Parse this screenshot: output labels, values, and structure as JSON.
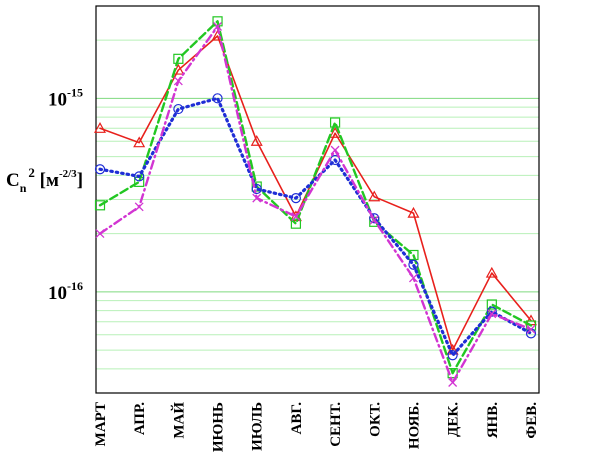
{
  "chart_data": {
    "type": "line",
    "title": "",
    "xlabel": "",
    "ylabel": {
      "base": "C",
      "sub": "n",
      "sup": "2",
      "unit_base": " [м",
      "unit_sup": "-2/3",
      "unit_close": "]"
    },
    "y_scale": "log",
    "ylim": [
      3e-17,
      3e-15
    ],
    "y_ticks": [
      {
        "value": 1e-15,
        "base": "10",
        "exp": "-15"
      },
      {
        "value": 1e-16,
        "base": "10",
        "exp": "-16"
      }
    ],
    "grid": "horizontal",
    "legend": "none",
    "categories": [
      "МАРТ",
      "АПР.",
      "МАЙ",
      "ИЮНЬ",
      "ИЮЛЬ",
      "АВГ.",
      "СЕНТ.",
      "ОКТ.",
      "НОЯБ.",
      "ДЕК.",
      "ЯНВ.",
      "ФЕВ."
    ],
    "series": [
      {
        "color": "#e8201c",
        "line": "solid",
        "marker": "triangle",
        "values": [
          7e-16,
          5.9e-16,
          1.4e-15,
          2.1e-15,
          6e-16,
          2.45e-16,
          6.6e-16,
          3.1e-16,
          2.55e-16,
          5e-17,
          1.25e-16,
          7.1e-17
        ]
      },
      {
        "color": "#22c722",
        "line": "dashed",
        "marker": "square",
        "values": [
          2.8e-16,
          3.7e-16,
          1.6e-15,
          2.5e-15,
          3.5e-16,
          2.25e-16,
          7.5e-16,
          2.3e-16,
          1.55e-16,
          3.8e-17,
          8.6e-17,
          6.7e-17
        ]
      },
      {
        "color": "#1f2ed6",
        "line": "dotted",
        "marker": "circle",
        "values": [
          4.3e-16,
          3.95e-16,
          8.8e-16,
          1e-15,
          3.4e-16,
          3.05e-16,
          4.8e-16,
          2.4e-16,
          1.38e-16,
          4.7e-17,
          7.9e-17,
          6.1e-17
        ]
      },
      {
        "color": "#d235d2",
        "line": "dashdot",
        "marker": "x",
        "values": [
          2e-16,
          2.75e-16,
          1.23e-15,
          2.35e-15,
          3.05e-16,
          2.45e-16,
          5.4e-16,
          2.35e-16,
          1.18e-16,
          3.4e-17,
          7.7e-17,
          6.4e-17
        ]
      }
    ]
  }
}
